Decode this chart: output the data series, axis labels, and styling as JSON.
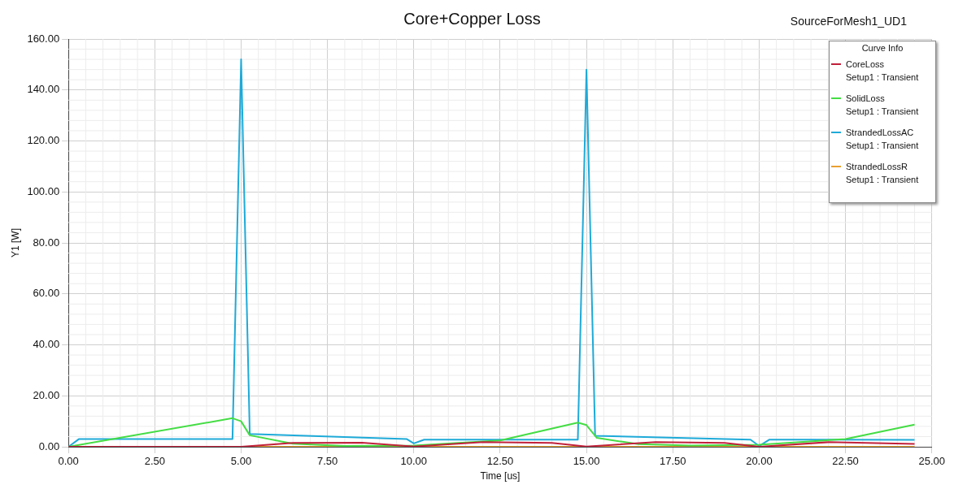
{
  "chart_data": {
    "type": "line",
    "title": "Core+Copper Loss",
    "subtitle": "SourceForMesh1_UD1",
    "xlabel": "Time [us]",
    "ylabel": "Y1 [W]",
    "legend_title": "Curve Info",
    "legend": "top right",
    "grid": true,
    "marker": "none",
    "line_style": "solid",
    "xlim": [
      0,
      25
    ],
    "xticks": [
      {
        "value": 0,
        "label": "0.00"
      },
      {
        "value": 2.5,
        "label": "2.50"
      },
      {
        "value": 5,
        "label": "5.00"
      },
      {
        "value": 7.5,
        "label": "7.50"
      },
      {
        "value": 10,
        "label": "10.00"
      },
      {
        "value": 12.5,
        "label": "12.50"
      },
      {
        "value": 15,
        "label": "15.00"
      },
      {
        "value": 17.5,
        "label": "17.50"
      },
      {
        "value": 20,
        "label": "20.00"
      },
      {
        "value": 22.5,
        "label": "22.50"
      },
      {
        "value": 25,
        "label": "25.00"
      }
    ],
    "ylim": [
      0,
      160
    ],
    "yticks": [
      {
        "value": 0,
        "label": "0.00"
      },
      {
        "value": 20,
        "label": "20.00"
      },
      {
        "value": 40,
        "label": "40.00"
      },
      {
        "value": 60,
        "label": "60.00"
      },
      {
        "value": 80,
        "label": "80.00"
      },
      {
        "value": 100,
        "label": "100.00"
      },
      {
        "value": 120,
        "label": "120.00"
      },
      {
        "value": 140,
        "label": "140.00"
      },
      {
        "value": 160,
        "label": "160.00"
      }
    ],
    "series": [
      {
        "name": "CoreLoss\nSetup1 : Transient",
        "color": "#c0203a",
        "x": [
          0,
          5,
          6.5,
          8.5,
          10,
          12,
          14,
          15,
          17,
          19,
          20,
          22,
          24.5
        ],
        "values": [
          0,
          0,
          1.5,
          1.6,
          0.1,
          1.8,
          1.5,
          0.1,
          1.8,
          1.5,
          0,
          1.8,
          1.1
        ]
      },
      {
        "name": "SolidLoss\nSetup1 : Transient",
        "color": "#44dd44",
        "x": [
          0,
          4.75,
          5,
          5.25,
          6.5,
          8,
          10,
          12.5,
          14.75,
          15,
          15.3,
          16.5,
          18,
          20,
          22.5,
          24.5
        ],
        "values": [
          0,
          11.2,
          10,
          4.5,
          1.2,
          0.3,
          0.5,
          2.5,
          9.5,
          8.5,
          3.5,
          1,
          0.5,
          0.8,
          3,
          8.7
        ]
      },
      {
        "name": "StrandedLossAC\nSetup1 : Transient",
        "color": "#1eaad8",
        "x": [
          0,
          0.3,
          4.75,
          5,
          5.25,
          9.8,
          10,
          10.3,
          14.75,
          15,
          15.25,
          19.75,
          20,
          20.3,
          24.5
        ],
        "values": [
          0,
          3,
          3,
          152,
          5,
          3,
          1.3,
          2.8,
          2.8,
          148,
          4.3,
          2.8,
          0.3,
          2.8,
          2.7
        ]
      },
      {
        "name": "StrandedLossR\nSetup1 : Transient",
        "color": "#e8a030",
        "x": [
          0,
          24.5
        ],
        "values": [
          0,
          0
        ]
      }
    ]
  }
}
